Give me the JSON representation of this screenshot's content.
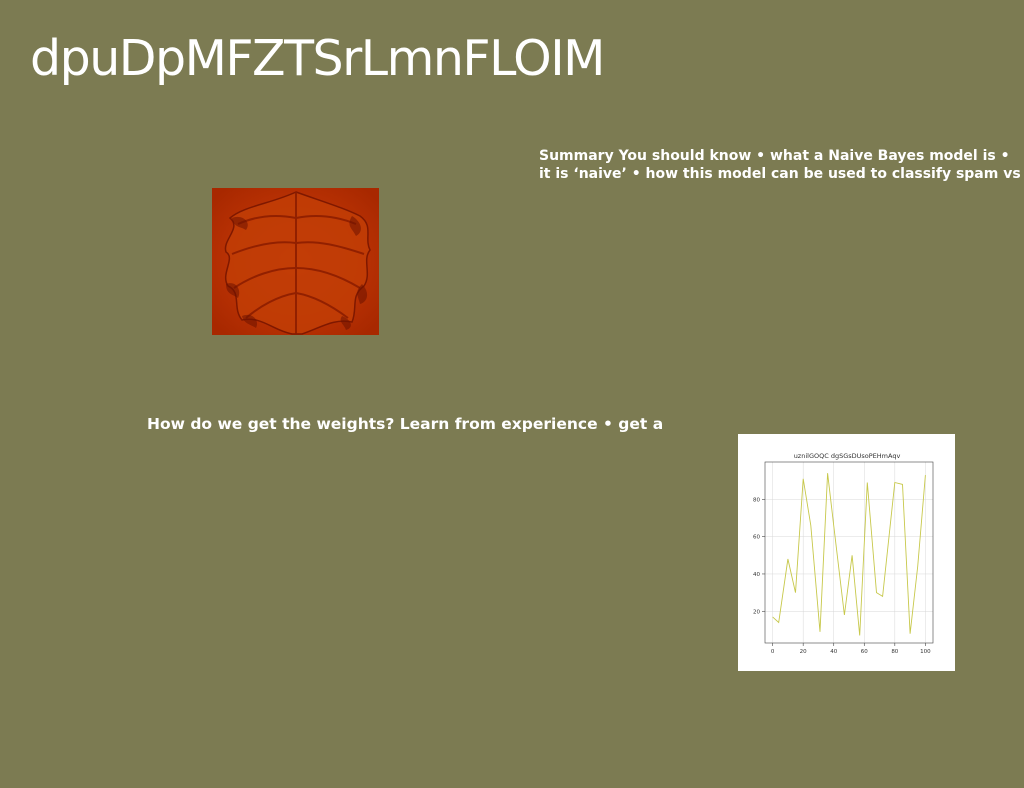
{
  "slide": {
    "title": "dpuDpMFZTSrLmnFLOIM",
    "summary_line1": "Summary You should know • what a Naive Bayes model is •",
    "summary_line2": "it is ‘naive’ • how this model can be used to classify spam vs",
    "weights_text": "How do we get the weights? Learn from experience • get a"
  },
  "colors": {
    "background": "#7c7b52",
    "leaf": "#c43200",
    "line": "#c7c84a"
  },
  "chart_data": {
    "type": "line",
    "title": "uznilGOQC dgSGsDUsoPEHmAqv",
    "x": [
      0,
      4,
      10,
      15,
      20,
      25,
      31,
      36,
      40,
      47,
      52,
      57,
      62,
      68,
      72,
      80,
      85,
      90,
      95,
      100
    ],
    "y": [
      17,
      14,
      48,
      30,
      91,
      66,
      9,
      94,
      66,
      18,
      50,
      7,
      89,
      30,
      28,
      89,
      88,
      8,
      44,
      93
    ],
    "xlim": [
      -5,
      105
    ],
    "ylim": [
      3,
      100
    ],
    "xticks": [
      0,
      20,
      40,
      60,
      80,
      100
    ],
    "yticks": [
      20,
      40,
      60,
      80
    ],
    "grid": true
  }
}
